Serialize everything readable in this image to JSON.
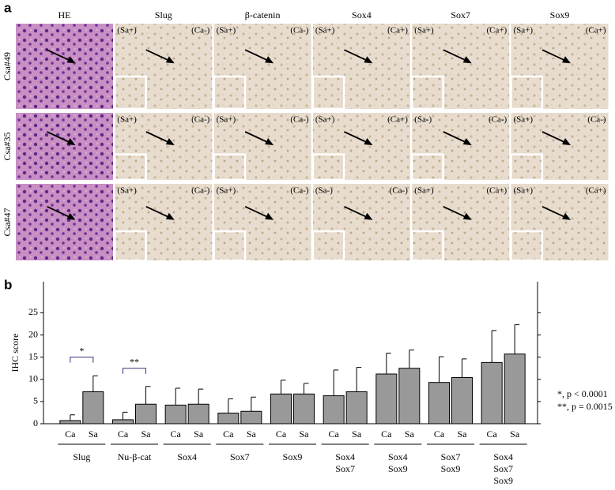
{
  "panel_a": {
    "label": "a",
    "columns": [
      "HE",
      "Slug",
      "β-catenin",
      "Sox4",
      "Sox7",
      "Sox9"
    ],
    "rows": [
      {
        "label": "Csa#49",
        "tags": [
          [
            "(Sa+)",
            "(Ca-)"
          ],
          [
            "(Sa+)",
            "(Ca-)"
          ],
          [
            "(Sa+)",
            "(Ca+)"
          ],
          [
            "(Sa+)",
            "(Ca+)"
          ],
          [
            "(Sa+)",
            "(Ca+)"
          ]
        ]
      },
      {
        "label": "Csa#35",
        "tags": [
          [
            "(Sa+)",
            "(Ca-)"
          ],
          [
            "(Sa+)",
            "(Ca-)"
          ],
          [
            "(Sa+)",
            "(Ca+)"
          ],
          [
            "(Sa-)",
            "(Ca-)"
          ],
          [
            "(Sa+)",
            "(Ca-)"
          ]
        ]
      },
      {
        "label": "Csa#47",
        "tags": [
          [
            "(Sa+)",
            "(Ca-)"
          ],
          [
            "(Sa+)",
            "(Ca-)"
          ],
          [
            "(Sa-)",
            "(Ca-)"
          ],
          [
            "(Sa+)",
            "(Ca+)"
          ],
          [
            "(Sa+)",
            "(Ca+)"
          ]
        ]
      }
    ]
  },
  "chart_data": {
    "type": "bar",
    "panel_label": "b",
    "ylabel": "IHC score",
    "ylim": [
      0,
      32
    ],
    "yticks": [
      0,
      5,
      10,
      15,
      20,
      25
    ],
    "color": "#999999",
    "groups": [
      {
        "label": [
          "Slug"
        ],
        "bars": [
          {
            "label": "Ca",
            "value": 0.7,
            "error": 1.3
          },
          {
            "label": "Sa",
            "value": 7.2,
            "error": 3.6
          }
        ],
        "significance": {
          "text": "*",
          "level": 15
        }
      },
      {
        "label": [
          "Nu-β-cat"
        ],
        "bars": [
          {
            "label": "Ca",
            "value": 0.9,
            "error": 1.7
          },
          {
            "label": "Sa",
            "value": 4.4,
            "error": 4.0
          }
        ],
        "significance": {
          "text": "**",
          "level": 12.5
        }
      },
      {
        "label": [
          "Sox4"
        ],
        "bars": [
          {
            "label": "Ca",
            "value": 4.2,
            "error": 3.8
          },
          {
            "label": "Sa",
            "value": 4.4,
            "error": 3.4
          }
        ]
      },
      {
        "label": [
          "Sox7"
        ],
        "bars": [
          {
            "label": "Ca",
            "value": 2.4,
            "error": 3.2
          },
          {
            "label": "Sa",
            "value": 2.8,
            "error": 3.2
          }
        ]
      },
      {
        "label": [
          "Sox9"
        ],
        "bars": [
          {
            "label": "Ca",
            "value": 6.7,
            "error": 3.1
          },
          {
            "label": "Sa",
            "value": 6.7,
            "error": 2.4
          }
        ]
      },
      {
        "label": [
          "Sox4",
          "Sox7"
        ],
        "bars": [
          {
            "label": "Ca",
            "value": 6.3,
            "error": 5.8
          },
          {
            "label": "Sa",
            "value": 7.2,
            "error": 5.5
          }
        ]
      },
      {
        "label": [
          "Sox4",
          "Sox9"
        ],
        "bars": [
          {
            "label": "Ca",
            "value": 11.2,
            "error": 4.7
          },
          {
            "label": "Sa",
            "value": 12.5,
            "error": 4.1
          }
        ]
      },
      {
        "label": [
          "Sox7",
          "Sox9"
        ],
        "bars": [
          {
            "label": "Ca",
            "value": 9.3,
            "error": 5.8
          },
          {
            "label": "Sa",
            "value": 10.4,
            "error": 4.2
          }
        ]
      },
      {
        "label": [
          "Sox4",
          "Sox7",
          "Sox9"
        ],
        "bars": [
          {
            "label": "Ca",
            "value": 13.8,
            "error": 7.2
          },
          {
            "label": "Sa",
            "value": 15.7,
            "error": 6.6
          }
        ]
      }
    ],
    "annotations": [
      "*,  p < 0.0001",
      "**, p = 0.0015"
    ]
  }
}
